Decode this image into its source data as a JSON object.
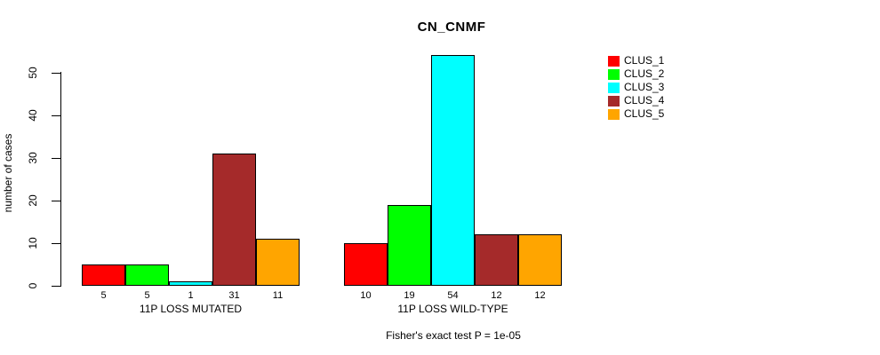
{
  "title": "CN_CNMF",
  "ylabel": "number of cases",
  "caption": "Fisher's exact test P = 1e-05",
  "legend": {
    "entries": [
      {
        "label": "CLUS_1",
        "color": "#FF0000"
      },
      {
        "label": "CLUS_2",
        "color": "#00FF00"
      },
      {
        "label": "CLUS_3",
        "color": "#00FFFF"
      },
      {
        "label": "CLUS_4",
        "color": "#A52A2A"
      },
      {
        "label": "CLUS_5",
        "color": "#FFA500"
      }
    ]
  },
  "chart_data": {
    "type": "bar",
    "title": "CN_CNMF",
    "xlabel": "",
    "ylabel": "number of cases",
    "ylim": [
      0,
      54
    ],
    "yticks": [
      0,
      10,
      20,
      30,
      40,
      50
    ],
    "grid": false,
    "legend_position": "right",
    "series": [
      "CLUS_1",
      "CLUS_2",
      "CLUS_3",
      "CLUS_4",
      "CLUS_5"
    ],
    "series_colors": [
      "#FF0000",
      "#00FF00",
      "#00FFFF",
      "#A52A2A",
      "#FFA500"
    ],
    "groups": [
      {
        "label": "11P LOSS MUTATED",
        "values": [
          5,
          5,
          1,
          31,
          11
        ]
      },
      {
        "label": "11P LOSS WILD-TYPE",
        "values": [
          10,
          19,
          54,
          12,
          12
        ]
      }
    ]
  }
}
